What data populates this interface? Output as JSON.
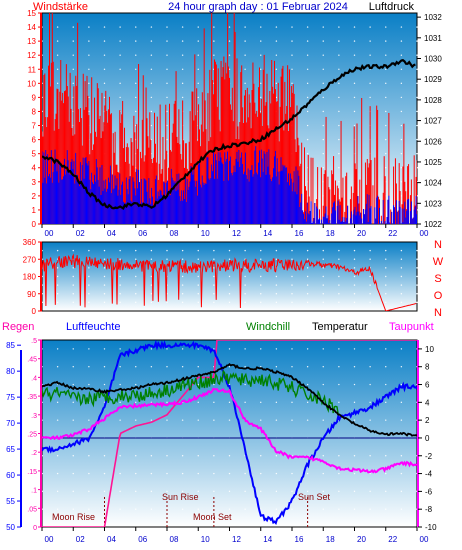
{
  "header": {
    "left_label": "Windstärke",
    "title": "24 hour graph day : 01 Februar 2024",
    "right_label": "Luftdruck"
  },
  "wind_left_ticks": [
    "0",
    "1",
    "2",
    "3",
    "4",
    "5",
    "6",
    "7",
    "8",
    "9",
    "10",
    "11",
    "12",
    "13",
    "14",
    "15"
  ],
  "pressure_ticks": [
    "1032",
    "1031",
    "1030",
    "1029",
    "1028",
    "1027",
    "1026",
    "1025",
    "1024",
    "1023",
    "1022"
  ],
  "x_ticks": [
    "00",
    "02",
    "04",
    "06",
    "08",
    "10",
    "12",
    "14",
    "16",
    "18",
    "20",
    "22",
    "00"
  ],
  "dir_left_ticks": [
    "360",
    "270",
    "180",
    "90",
    "0"
  ],
  "dir_right_labels": [
    "N",
    "W",
    "S",
    "O",
    "N"
  ],
  "lower_legend": {
    "regen": "Regen",
    "luftfeuchte": "Luftfeuchte",
    "windchill": "Windchill",
    "temperatur": "Temperatur",
    "taupunkt": "Taupunkt"
  },
  "rain_ticks": [
    ".5",
    ".45",
    ".4",
    ".35",
    ".3",
    ".25",
    ".2",
    ".15",
    ".1",
    ".05",
    "0"
  ],
  "hum_ticks": [
    "85",
    "80",
    "75",
    "70",
    "65",
    "60",
    "55",
    "50"
  ],
  "temp_ticks": [
    "10",
    "8",
    "6",
    "4",
    "2",
    "0",
    "-2",
    "-4",
    "-6",
    "-8",
    "-10"
  ],
  "astro": {
    "moon_rise": "Moon Rise",
    "sun_rise": "Sun Rise",
    "moon_set": "Moon Set",
    "sun_set": "Sun Set"
  },
  "colors": {
    "wind_gust": "#ff0000",
    "wind_avg": "#0000ff",
    "pressure": "#000000",
    "direction": "#ff0000",
    "humidity": "#0000ff",
    "windchill": "#008000",
    "temperature": "#000000",
    "dewpoint": "#ff00ff",
    "rain": "#ff1493",
    "panel_top": "#0a7fc6",
    "panel_bottom": "#ffffff"
  },
  "chart_data": [
    {
      "type": "line",
      "title": "24 hour graph day : 01 Februar 2024",
      "ylabel": "Windstärke",
      "ylabel_right": "Luftdruck",
      "xlim_hours": [
        0,
        24
      ],
      "ylim": [
        0,
        15
      ],
      "ylim_right": [
        1022,
        1032
      ],
      "grid": true,
      "series": [
        {
          "name": "Luftdruck",
          "axis": "right",
          "x": [
            0,
            1,
            2,
            3,
            4,
            5,
            6,
            7,
            8,
            9,
            10,
            11,
            12,
            13,
            14,
            15,
            16,
            17,
            18,
            19,
            20,
            21,
            22,
            23,
            24
          ],
          "values": [
            1025.3,
            1025.0,
            1024.4,
            1023.5,
            1022.9,
            1022.8,
            1023.0,
            1022.8,
            1023.4,
            1024.2,
            1025.0,
            1025.6,
            1025.8,
            1025.9,
            1026.1,
            1026.6,
            1027.1,
            1027.8,
            1028.5,
            1029.1,
            1029.5,
            1029.6,
            1029.6,
            1029.9,
            1029.6
          ]
        },
        {
          "name": "Windstärke",
          "x": [
            0,
            1,
            2,
            3,
            4,
            5,
            6,
            7,
            8,
            9,
            10,
            11,
            12,
            13,
            14,
            15,
            16,
            17,
            18,
            19,
            20,
            21,
            22,
            23,
            24
          ],
          "values": [
            9,
            9,
            9,
            8,
            7,
            6,
            6,
            5,
            6,
            6,
            7,
            9,
            9,
            9,
            10,
            9,
            8,
            2,
            2,
            2,
            2,
            2,
            2,
            2,
            2
          ]
        }
      ]
    },
    {
      "type": "scatter",
      "ylabel": "Windrichtung",
      "ylim": [
        0,
        360
      ],
      "ytick_labels_right": [
        "N",
        "W",
        "S",
        "O",
        "N"
      ],
      "series": [
        {
          "x": [
            0,
            2,
            4,
            6,
            8,
            10,
            12,
            14,
            16,
            17,
            18,
            19,
            20,
            21,
            22,
            23,
            24
          ],
          "values": [
            240,
            260,
            250,
            240,
            230,
            230,
            240,
            235,
            240,
            250,
            240,
            230,
            200,
            220,
            0,
            20,
            40
          ]
        }
      ]
    },
    {
      "type": "line",
      "ylim_temp": [
        -10,
        11
      ],
      "ylim_humidity": [
        50,
        86
      ],
      "ylim_rain": [
        0,
        0.5
      ],
      "series": [
        {
          "name": "Temperatur",
          "axis": "temp",
          "x": [
            0,
            1,
            2,
            3,
            4,
            5,
            6,
            7,
            8,
            9,
            10,
            11,
            12,
            13,
            14,
            15,
            16,
            17,
            18,
            19,
            20,
            21,
            22,
            23,
            24
          ],
          "values": [
            5.8,
            6.2,
            5.6,
            5.5,
            5.2,
            5.4,
            5.6,
            6.0,
            6.2,
            6.6,
            7.0,
            7.4,
            8.2,
            7.8,
            7.8,
            7.4,
            6.8,
            5.6,
            4.0,
            2.6,
            1.6,
            0.8,
            0.4,
            0.5,
            0.2
          ]
        },
        {
          "name": "Windchill",
          "axis": "temp",
          "x": [
            0,
            1,
            2,
            3,
            4,
            5,
            6,
            7,
            8,
            9,
            10,
            11,
            12,
            13,
            14,
            15,
            16,
            17,
            18,
            19
          ],
          "values": [
            4.8,
            5.0,
            4.4,
            4.4,
            4.6,
            4.7,
            4.8,
            5.0,
            5.4,
            5.9,
            6.2,
            6.6,
            6.8,
            6.4,
            6.6,
            6.1,
            5.6,
            4.8,
            4.2,
            3.2
          ]
        },
        {
          "name": "Taupunkt",
          "axis": "temp",
          "x": [
            0,
            1,
            2,
            3,
            4,
            5,
            6,
            7,
            8,
            9,
            10,
            11,
            12,
            13,
            14,
            15,
            16,
            17,
            18,
            19,
            20,
            21,
            22,
            23,
            24
          ],
          "values": [
            0.0,
            0.0,
            0.3,
            1.0,
            2.2,
            3.4,
            3.6,
            3.7,
            3.8,
            4.0,
            4.6,
            5.4,
            5.2,
            2.0,
            1.0,
            -1.5,
            -2.2,
            -2.2,
            -2.6,
            -3.4,
            -3.6,
            -3.8,
            -3.5,
            -2.8,
            -3.0
          ]
        },
        {
          "name": "Luftfeuchte",
          "axis": "humidity",
          "x": [
            0,
            1,
            2,
            3,
            4,
            5,
            6,
            7,
            8,
            9,
            10,
            11,
            12,
            13,
            14,
            15,
            16,
            17,
            18,
            19,
            20,
            21,
            22,
            23,
            24
          ],
          "values": [
            65,
            65,
            66,
            67,
            73,
            83,
            84,
            85,
            85,
            85,
            85,
            84,
            77,
            65,
            52,
            51,
            55,
            62,
            67,
            71,
            72,
            73,
            75,
            77,
            77
          ]
        },
        {
          "name": "Regen",
          "axis": "rain",
          "x": [
            0,
            4.0,
            4.2,
            5.0,
            6.0,
            7.0,
            8.0,
            9.0,
            10.0,
            11.0,
            11.2,
            12.0,
            24
          ],
          "values": [
            0,
            0,
            0.05,
            0.25,
            0.27,
            0.28,
            0.3,
            0.35,
            0.4,
            0.4,
            0.5,
            0.5,
            0.5
          ]
        }
      ]
    }
  ]
}
